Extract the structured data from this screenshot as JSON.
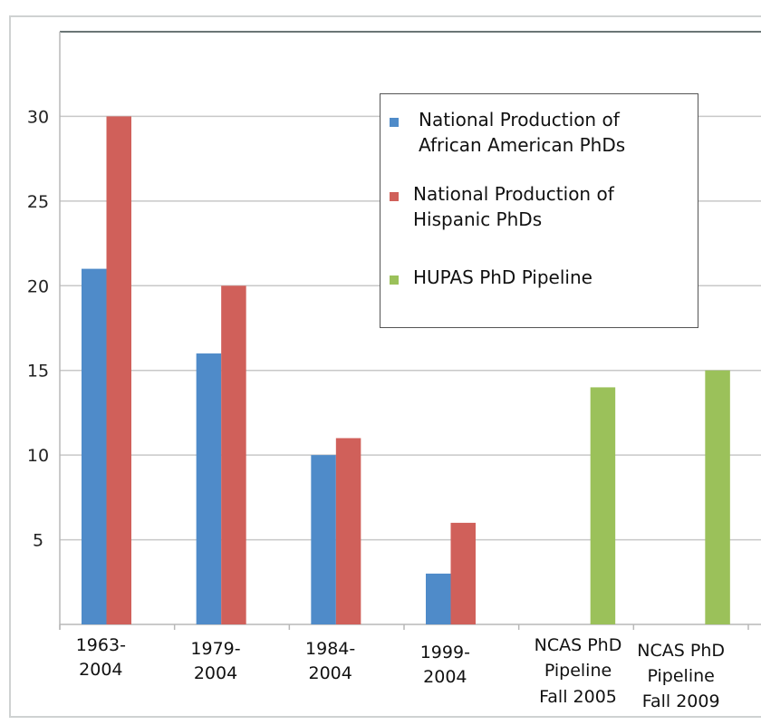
{
  "chart_data": {
    "type": "bar",
    "categories": [
      [
        "1963-",
        "2004"
      ],
      [
        "1979-",
        "2004"
      ],
      [
        "1984-",
        "2004"
      ],
      [
        "1999-",
        "2004"
      ],
      [
        "NCAS PhD",
        "Pipeline",
        "Fall 2005"
      ],
      [
        "NCAS PhD",
        "Pipeline",
        "Fall 2009"
      ]
    ],
    "series": [
      {
        "name": "National Production of African American PhDs",
        "color": "#4f8bc9",
        "values": [
          21,
          16,
          10,
          3,
          null,
          null
        ]
      },
      {
        "name": "National Production of Hispanic PhDs",
        "color": "#d0605a",
        "values": [
          30,
          20,
          11,
          6,
          null,
          null
        ]
      },
      {
        "name": "HUPAS PhD Pipeline",
        "color": "#9bc15a",
        "values": [
          null,
          null,
          null,
          null,
          14,
          15
        ]
      }
    ],
    "yticks": [
      5,
      10,
      15,
      20,
      25,
      30
    ],
    "ylim": [
      0,
      35
    ],
    "grid": true,
    "legend_position": "top-right",
    "legend_lines": [
      [
        "National Production of",
        "African American PhDs"
      ],
      [
        "National Production of",
        "Hispanic PhDs"
      ],
      [
        "HUPAS PhD Pipeline"
      ]
    ]
  }
}
